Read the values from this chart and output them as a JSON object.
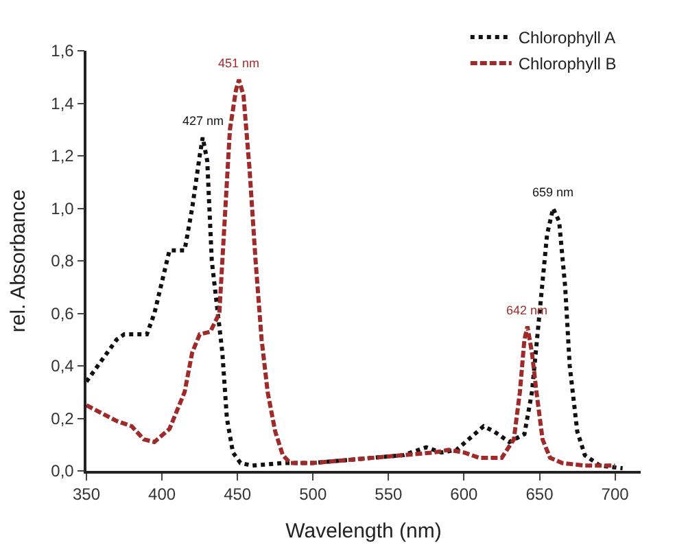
{
  "chart_data": {
    "type": "line",
    "xlabel": "Wavelength (nm)",
    "ylabel": "rel. Absorbance",
    "xlim": [
      350,
      717
    ],
    "ylim": [
      0,
      1.6
    ],
    "xticks": [
      350,
      400,
      450,
      500,
      550,
      600,
      650,
      700
    ],
    "yticks": [
      {
        "value": 0,
        "label": "0,0"
      },
      {
        "value": 0.2,
        "label": "0,2"
      },
      {
        "value": 0.4,
        "label": "0,4"
      },
      {
        "value": 0.6,
        "label": "0,6"
      },
      {
        "value": 0.8,
        "label": "0,8"
      },
      {
        "value": 1.0,
        "label": "1,0"
      },
      {
        "value": 1.2,
        "label": "1,2"
      },
      {
        "value": 1.4,
        "label": "1,4"
      },
      {
        "value": 1.6,
        "label": "1,6"
      }
    ],
    "legend": "top right",
    "marker": "none",
    "series": [
      {
        "name": "Chlorophyll A",
        "color": "#111111",
        "line_style": "dotted",
        "x": [
          350,
          360,
          370,
          375,
          390,
          395,
          400,
          405,
          415,
          420,
          425,
          427,
          430,
          433,
          437,
          440,
          443,
          447,
          452,
          460,
          480,
          500,
          520,
          540,
          560,
          570,
          575,
          585,
          595,
          605,
          613,
          620,
          630,
          640,
          645,
          650,
          655,
          659,
          663,
          667,
          670,
          675,
          680,
          690,
          705
        ],
        "values": [
          0.34,
          0.42,
          0.5,
          0.52,
          0.52,
          0.6,
          0.72,
          0.84,
          0.84,
          1.0,
          1.2,
          1.27,
          1.18,
          0.8,
          0.6,
          0.45,
          0.2,
          0.07,
          0.03,
          0.02,
          0.03,
          0.03,
          0.04,
          0.05,
          0.06,
          0.08,
          0.09,
          0.07,
          0.08,
          0.13,
          0.17,
          0.15,
          0.11,
          0.14,
          0.3,
          0.6,
          0.9,
          1.0,
          0.95,
          0.7,
          0.4,
          0.15,
          0.06,
          0.02,
          0.01
        ]
      },
      {
        "name": "Chlorophyll B",
        "color": "#9e2a2a",
        "line_style": "dashed",
        "x": [
          350,
          360,
          370,
          380,
          388,
          395,
          405,
          415,
          420,
          425,
          432,
          438,
          441,
          445,
          449,
          451,
          454,
          458,
          462,
          466,
          470,
          475,
          480,
          485,
          500,
          520,
          540,
          560,
          580,
          590,
          600,
          610,
          625,
          633,
          637,
          640,
          642,
          645,
          648,
          652,
          657,
          665,
          680,
          700
        ],
        "values": [
          0.25,
          0.22,
          0.19,
          0.17,
          0.12,
          0.11,
          0.16,
          0.3,
          0.45,
          0.52,
          0.53,
          0.6,
          0.9,
          1.3,
          1.45,
          1.49,
          1.43,
          1.15,
          0.8,
          0.5,
          0.3,
          0.15,
          0.06,
          0.03,
          0.03,
          0.04,
          0.05,
          0.06,
          0.07,
          0.08,
          0.07,
          0.05,
          0.05,
          0.12,
          0.3,
          0.5,
          0.55,
          0.45,
          0.3,
          0.12,
          0.05,
          0.03,
          0.02,
          0.02
        ]
      }
    ],
    "annotations": [
      {
        "text": "427 nm",
        "x": 427,
        "y": 1.27
      },
      {
        "text": "451 nm",
        "x": 451,
        "y": 1.49
      },
      {
        "text": "659 nm",
        "x": 659,
        "y": 1.0
      },
      {
        "text": "642 nm",
        "x": 642,
        "y": 0.55
      }
    ]
  }
}
